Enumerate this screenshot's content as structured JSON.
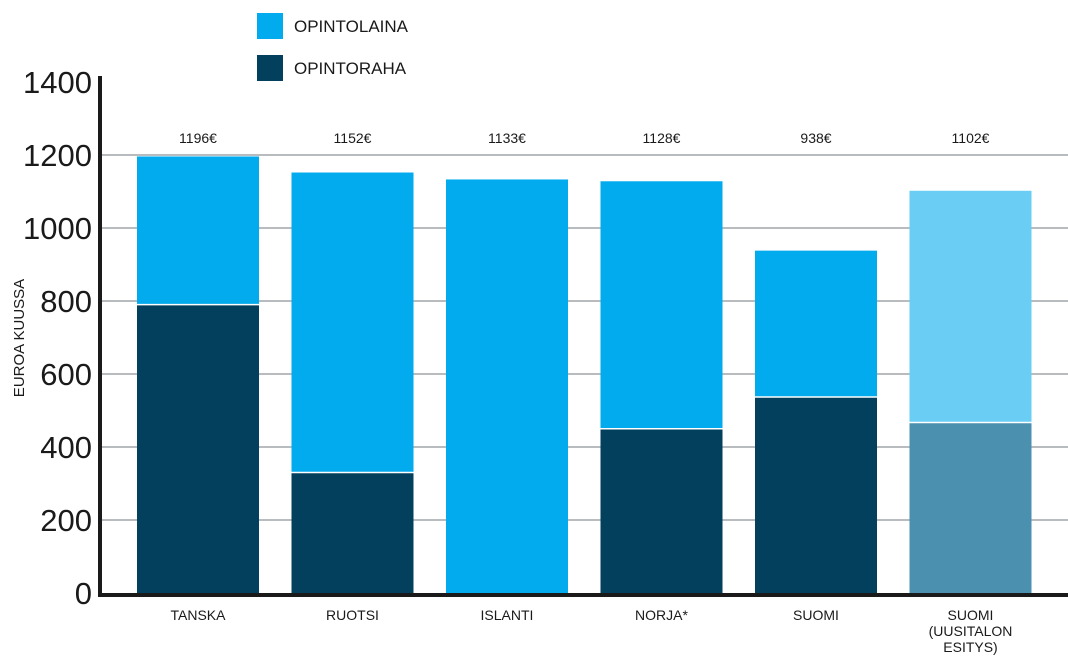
{
  "chart_data": {
    "type": "bar",
    "stacked": true,
    "categories": [
      "TANSKA",
      "RUOTSI",
      "ISLANTI",
      "NORJA*",
      "SUOMI",
      "SUOMI (UUSITALON ESITYS)"
    ],
    "category_lines": [
      [
        "TANSKA"
      ],
      [
        "RUOTSI"
      ],
      [
        "ISLANTI"
      ],
      [
        "NORJA*"
      ],
      [
        "SUOMI"
      ],
      [
        "SUOMI",
        "(UUSITALON",
        "ESITYS)"
      ]
    ],
    "series": [
      {
        "name": "OPINTORAHA",
        "values": [
          790,
          330,
          0,
          450,
          537,
          467
        ],
        "color": "#02405e",
        "highlight_color": "#4b90ae"
      },
      {
        "name": "OPINTOLAINA",
        "values": [
          406,
          822,
          1133,
          678,
          401,
          635
        ],
        "color": "#02abed",
        "highlight_color": "#69cdf4"
      }
    ],
    "totals": [
      "1196€",
      "1152€",
      "1133€",
      "1128€",
      "938€",
      "1102€"
    ],
    "highlight_category_index": 5,
    "legend": [
      "OPINTOLAINA",
      "OPINTORAHA"
    ],
    "legend_placement": "top",
    "ylabel": "EUROA KUUSSA",
    "xlabel": "",
    "ylim": [
      0,
      1400
    ],
    "yticks": [
      0,
      200,
      400,
      600,
      800,
      1000,
      1200,
      1400
    ],
    "grid": true,
    "grid_color": "#b8bcbf",
    "axis_color": "#1a1a1a"
  }
}
